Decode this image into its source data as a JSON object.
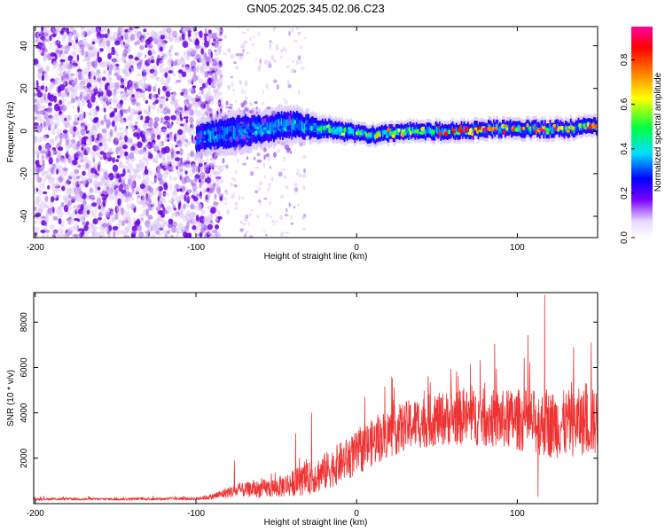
{
  "title": "GN05.2025.345.02.06.C23",
  "colors": {
    "snr_line": "#ee3333",
    "spec_dark": "#6a00e0",
    "spec_light": "#d9c2f5",
    "spec_mid": "#9a55ee",
    "axis": "#000000"
  },
  "chart_data": [
    {
      "type": "heatmap",
      "title": "GN05.2025.345.02.06.C23",
      "xlabel": "Height of straight line (km)",
      "ylabel": "Frequency (Hz)",
      "xlim": [
        -201,
        150
      ],
      "ylim": [
        -50,
        49
      ],
      "xticks": [
        -200,
        -100,
        0,
        100
      ],
      "yticks": [
        -40,
        -20,
        0,
        20,
        40
      ],
      "xtick_labels": [
        "-200",
        "-100",
        "0",
        "100"
      ],
      "ytick_labels": [
        "-40",
        "-20",
        "0",
        "20",
        "40"
      ],
      "colorbar": {
        "label": "Normalized spectral amplitude",
        "range": [
          0,
          0.95
        ],
        "ticks": [
          0.0,
          0.2,
          0.4,
          0.6,
          0.8
        ],
        "tick_labels": [
          "0.0",
          "0.2",
          "0.4",
          "0.6",
          "0.8"
        ]
      },
      "ridge": {
        "x": [
          -100,
          -90,
          -80,
          -70,
          -60,
          -50,
          -40,
          -30,
          -20,
          -10,
          0,
          10,
          20,
          30,
          40,
          50,
          60,
          70,
          80,
          90,
          100,
          110,
          120,
          130,
          140,
          150
        ],
        "freq": [
          -3,
          -2,
          -1,
          0,
          1,
          2,
          3,
          2,
          1,
          0,
          -1,
          -2,
          -1,
          0,
          0,
          0,
          0,
          0,
          1,
          1,
          1,
          1,
          1,
          1,
          2,
          2
        ],
        "halfwidth": [
          6,
          6,
          7,
          7,
          6,
          6,
          6,
          5,
          4,
          4,
          3.5,
          3.5,
          3.5,
          3.5,
          3.5,
          3.5,
          3.5,
          3.5,
          3.5,
          3.5,
          3.5,
          3.5,
          3.5,
          3.5,
          3.5,
          3.5
        ],
        "peak_amplitude": [
          0.25,
          0.3,
          0.3,
          0.35,
          0.4,
          0.4,
          0.45,
          0.5,
          0.55,
          0.6,
          0.65,
          0.7,
          0.75,
          0.8,
          0.85,
          0.9,
          0.9,
          0.9,
          0.9,
          0.9,
          0.9,
          0.9,
          0.9,
          0.9,
          0.9,
          0.9
        ]
      },
      "noise_region_x": [
        -200,
        -90
      ],
      "noise_amplitude": [
        0.0,
        0.15
      ]
    },
    {
      "type": "line",
      "xlabel": "Height of straight line (km)",
      "ylabel": "SNR (10 * v/v)",
      "xlim": [
        -201,
        150
      ],
      "ylim": [
        0,
        9300
      ],
      "xticks": [
        -200,
        -100,
        0,
        100
      ],
      "yticks": [
        2000,
        4000,
        6000,
        8000
      ],
      "xtick_labels": [
        "-200",
        "-100",
        "0",
        "100"
      ],
      "ytick_labels": [
        "2000",
        "4000",
        "6000",
        "8000"
      ],
      "envelope": {
        "x": [
          -200,
          -150,
          -100,
          -90,
          -80,
          -70,
          -60,
          -50,
          -40,
          -30,
          -20,
          -10,
          0,
          10,
          20,
          30,
          40,
          50,
          60,
          70,
          80,
          90,
          100,
          110,
          120,
          130,
          140,
          150
        ],
        "baseline": [
          200,
          200,
          220,
          300,
          500,
          600,
          650,
          700,
          900,
          1100,
          1400,
          1800,
          2200,
          2700,
          3100,
          3400,
          3600,
          3700,
          3800,
          3800,
          3800,
          3700,
          3700,
          3600,
          3500,
          3500,
          3600,
          3600
        ],
        "spread": [
          80,
          80,
          100,
          200,
          400,
          500,
          600,
          700,
          900,
          1100,
          1300,
          1400,
          1500,
          1600,
          1700,
          1700,
          1800,
          1800,
          1900,
          1900,
          2000,
          2000,
          2100,
          2200,
          2300,
          2300,
          2300,
          2300
        ]
      },
      "notable_peaks": [
        {
          "x": 117,
          "y": 9200
        },
        {
          "x": 113,
          "y": 7800
        },
        {
          "x": 146,
          "y": 7100
        },
        {
          "x": 135,
          "y": 6900
        },
        {
          "x": -28,
          "y": 4000
        },
        {
          "x": -38,
          "y": 3100
        },
        {
          "x": -76,
          "y": 1900
        },
        {
          "x": 113,
          "y": 300
        }
      ]
    }
  ]
}
